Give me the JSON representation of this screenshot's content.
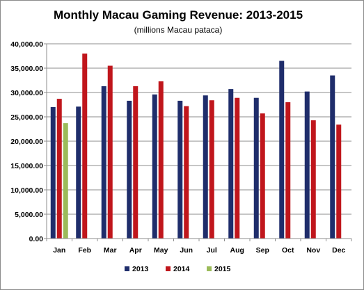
{
  "chart_data": {
    "type": "bar",
    "title": "Monthly Macau Gaming Revenue: 2013-2015",
    "subtitle": "(millions Macau pataca)",
    "xlabel": "",
    "ylabel": "",
    "ylim": [
      0,
      40000
    ],
    "yticks": [
      "0.00",
      "5,000.00",
      "10,000.00",
      "15,000.00",
      "20,000.00",
      "25,000.00",
      "30,000.00",
      "35,000.00",
      "40,000.00"
    ],
    "ytick_values": [
      0,
      5000,
      10000,
      15000,
      20000,
      25000,
      30000,
      35000,
      40000
    ],
    "grid": true,
    "legend_position": "bottom",
    "categories": [
      "Jan",
      "Feb",
      "Mar",
      "Apr",
      "May",
      "Jun",
      "Jul",
      "Aug",
      "Sep",
      "Oct",
      "Nov",
      "Dec"
    ],
    "series": [
      {
        "name": "2013",
        "color": "#1f2d6b",
        "values": [
          27000,
          27100,
          31300,
          28300,
          29600,
          28300,
          29400,
          30700,
          28900,
          36500,
          30200,
          33500
        ]
      },
      {
        "name": "2014",
        "color": "#c0161c",
        "values": [
          28700,
          38000,
          35500,
          31300,
          32300,
          27200,
          28400,
          28900,
          25700,
          28000,
          24300,
          23400
        ]
      },
      {
        "name": "2015",
        "color": "#9bbb59",
        "values": [
          23700,
          null,
          null,
          null,
          null,
          null,
          null,
          null,
          null,
          null,
          null,
          null
        ]
      }
    ]
  }
}
